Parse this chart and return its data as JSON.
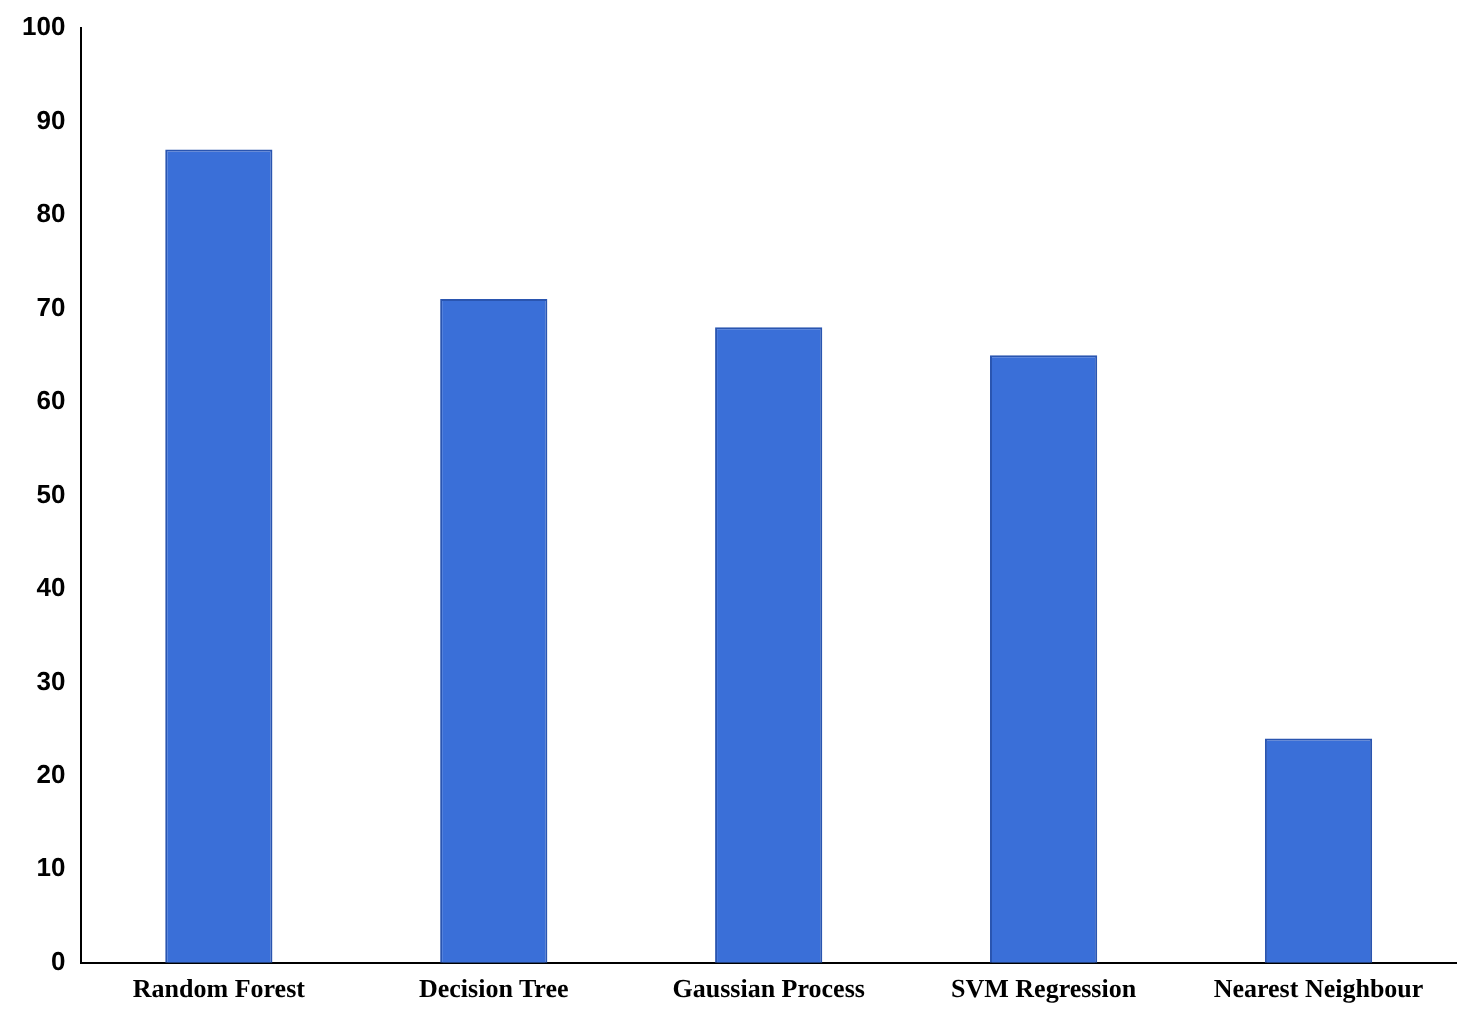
{
  "chart_data": {
    "type": "bar",
    "categories": [
      "Random Forest",
      "Decision Tree",
      "Gaussian Process",
      "SVM Regression",
      "Nearest Neighbour"
    ],
    "values": [
      87,
      71,
      68,
      65,
      24
    ],
    "color": "#3a6fd8",
    "ylim": [
      0,
      100
    ],
    "yticks": [
      0,
      10,
      20,
      30,
      40,
      50,
      60,
      70,
      80,
      90,
      100
    ],
    "grid": false,
    "legend": false
  }
}
